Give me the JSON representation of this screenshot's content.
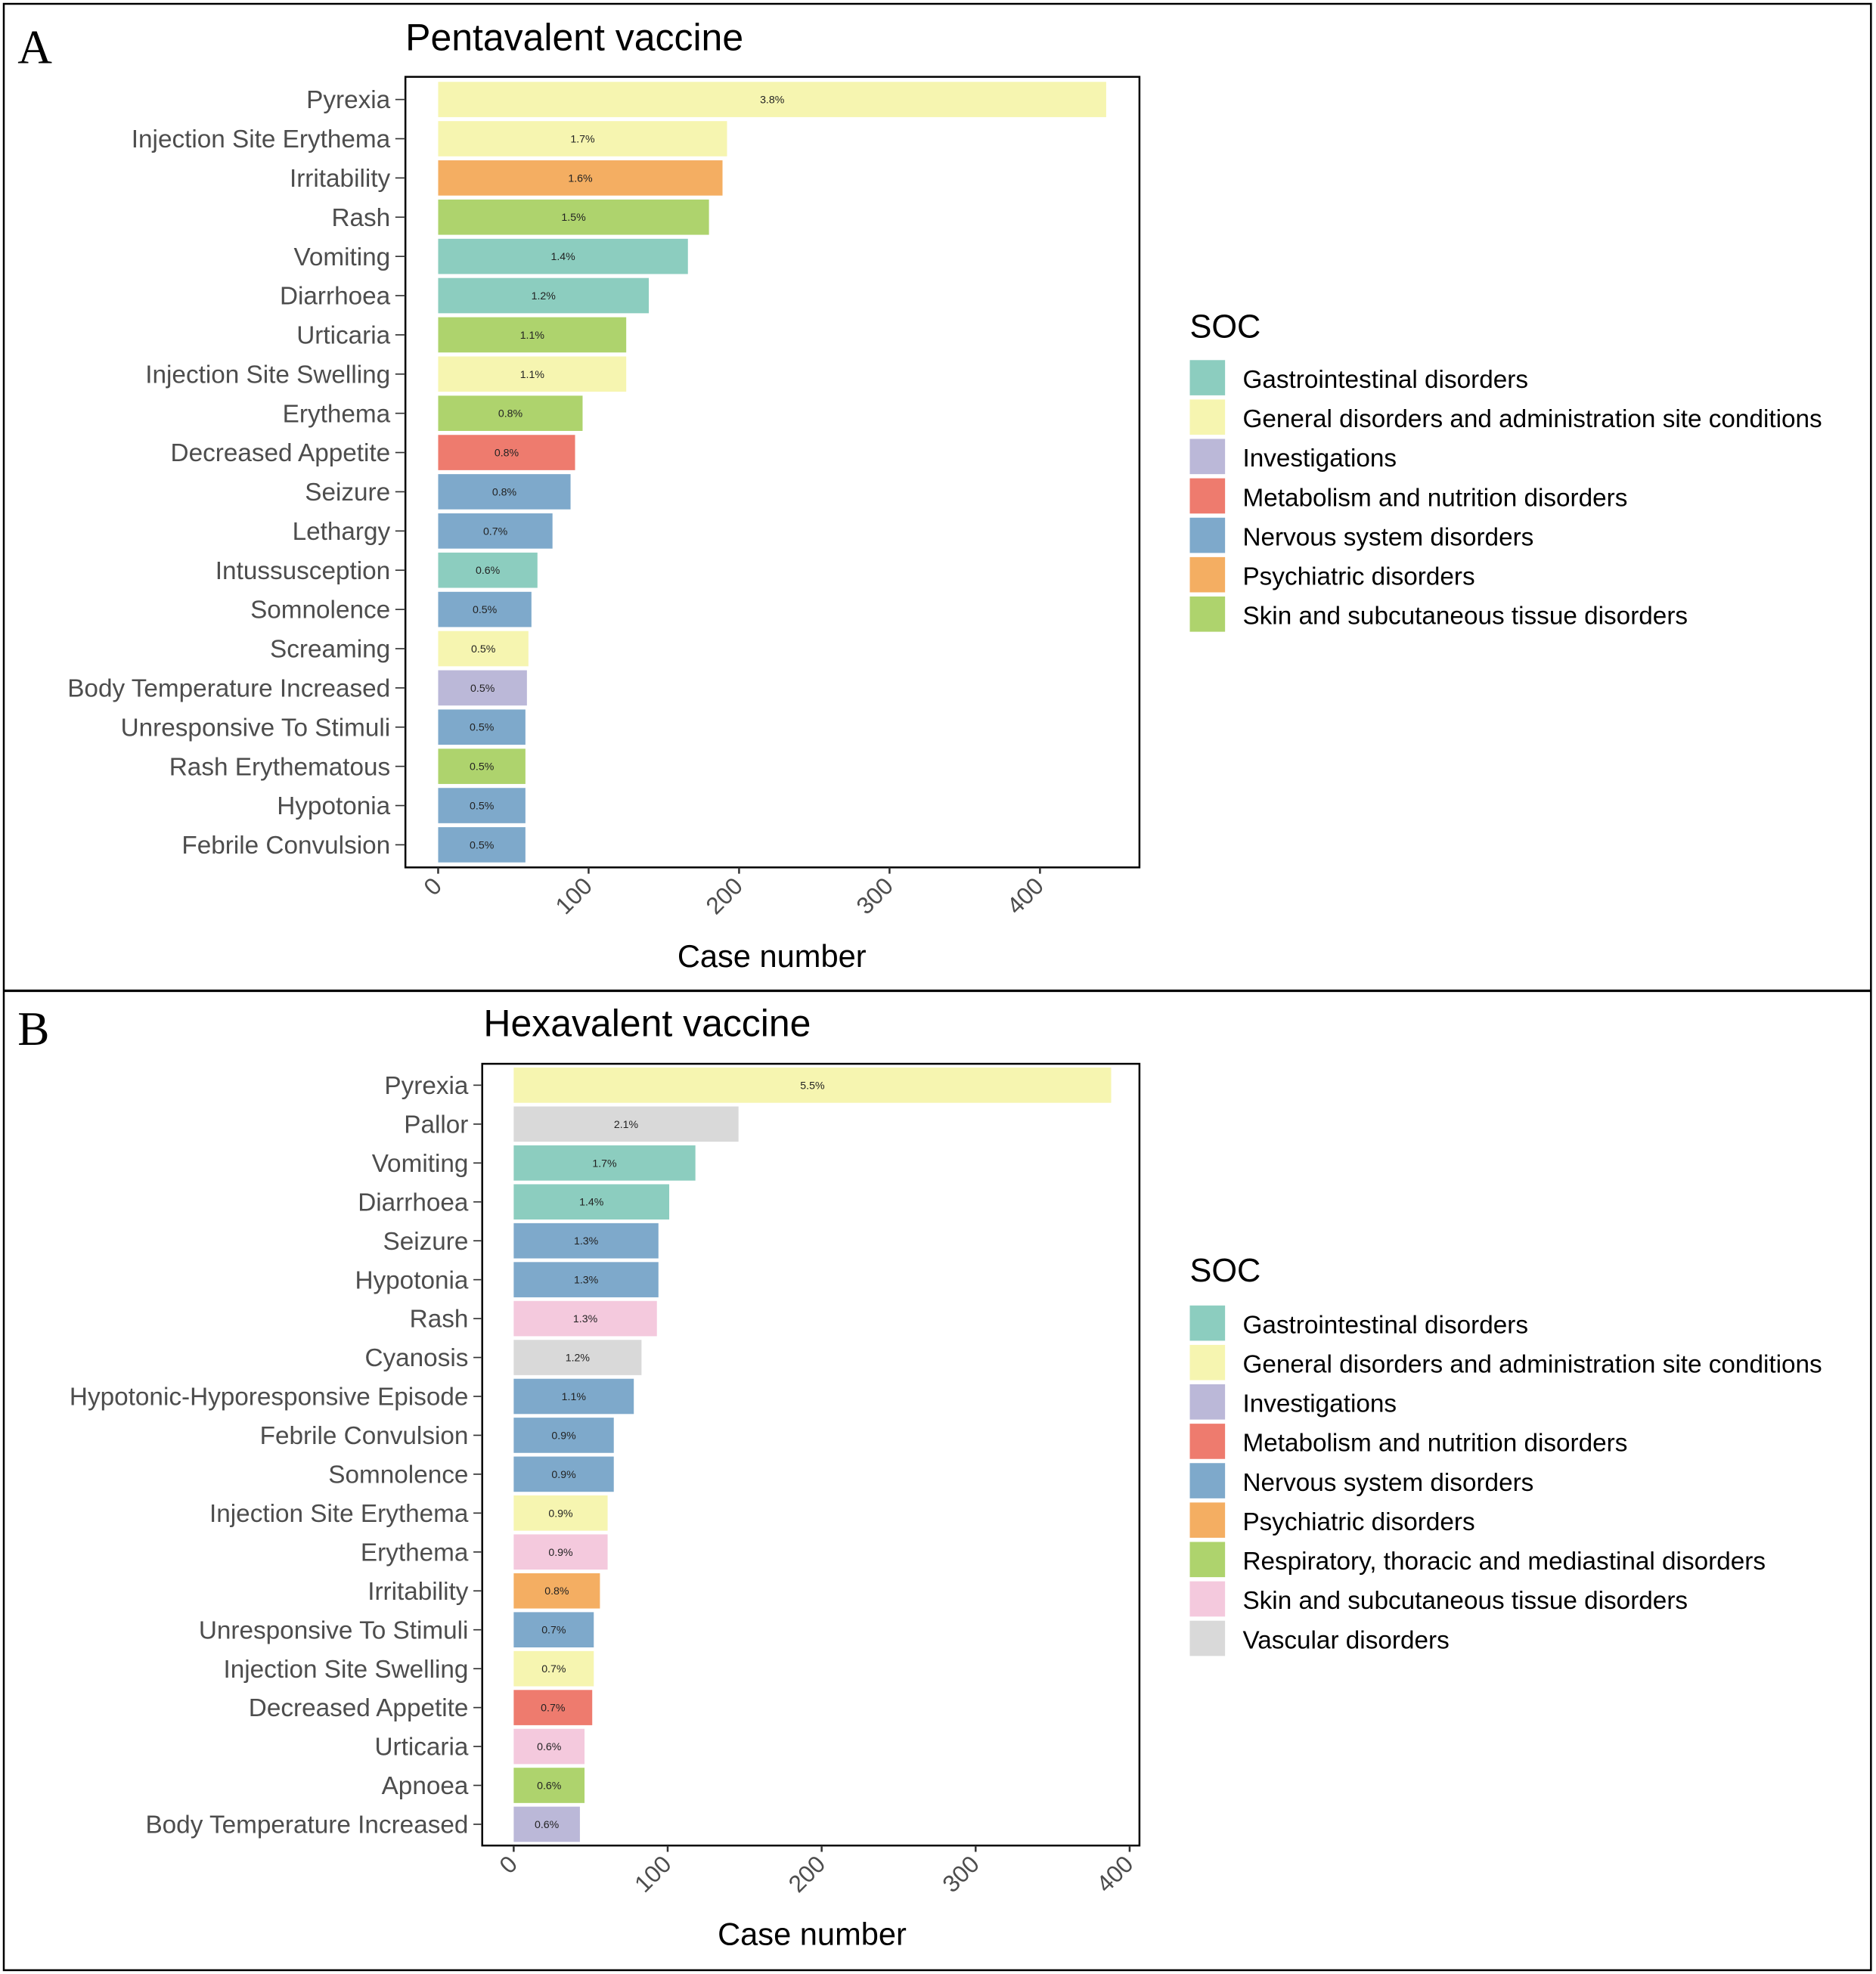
{
  "colors": {
    "Gastrointestinal disorders": "#8ccdbf",
    "General disorders and administration site conditions": "#f6f5b0",
    "Investigations": "#bbb8d8",
    "Metabolism and nutrition disorders": "#ee7b6e",
    "Nervous system disorders": "#7ea9cb",
    "Psychiatric disorders": "#f4ae62",
    "Skin and subcutaneous tissue disorders": "#aed36d",
    "Respiratory, thoracic and mediastinal disorders": "#aed36d",
    "Skin and subcutaneous tissue disorders B": "#f4c9dd",
    "Vascular disorders": "#d9d9d9"
  },
  "chart_data": [
    {
      "panel": "A",
      "type": "bar",
      "orientation": "horizontal",
      "title": "Pentavalent vaccine",
      "xlabel": "Case number",
      "xlim": [
        0,
        465
      ],
      "xticks": [
        0,
        100,
        200,
        300,
        400
      ],
      "legend_title": "SOC",
      "legend_position": "right",
      "legend": [
        {
          "label": "Gastrointestinal disorders",
          "color": "#8ccdbf"
        },
        {
          "label": "General disorders and administration site conditions",
          "color": "#f6f5b0"
        },
        {
          "label": "Investigations",
          "color": "#bbb8d8"
        },
        {
          "label": "Metabolism and nutrition disorders",
          "color": "#ee7b6e"
        },
        {
          "label": "Nervous system disorders",
          "color": "#7ea9cb"
        },
        {
          "label": "Psychiatric disorders",
          "color": "#f4ae62"
        },
        {
          "label": "Skin and subcutaneous tissue disorders",
          "color": "#aed36d"
        }
      ],
      "bars": [
        {
          "category": "Pyrexia",
          "value": 444,
          "pct": "3.8%",
          "soc": 1
        },
        {
          "category": "Injection Site Erythema",
          "value": 192,
          "pct": "1.7%",
          "soc": 1
        },
        {
          "category": "Irritability",
          "value": 189,
          "pct": "1.6%",
          "soc": 5
        },
        {
          "category": "Rash",
          "value": 180,
          "pct": "1.5%",
          "soc": 6
        },
        {
          "category": "Vomiting",
          "value": 166,
          "pct": "1.4%",
          "soc": 0
        },
        {
          "category": "Diarrhoea",
          "value": 140,
          "pct": "1.2%",
          "soc": 0
        },
        {
          "category": "Urticaria",
          "value": 125,
          "pct": "1.1%",
          "soc": 6
        },
        {
          "category": "Injection Site Swelling",
          "value": 125,
          "pct": "1.1%",
          "soc": 1
        },
        {
          "category": "Erythema",
          "value": 96,
          "pct": "0.8%",
          "soc": 6
        },
        {
          "category": "Decreased Appetite",
          "value": 91,
          "pct": "0.8%",
          "soc": 3
        },
        {
          "category": "Seizure",
          "value": 88,
          "pct": "0.8%",
          "soc": 4
        },
        {
          "category": "Lethargy",
          "value": 76,
          "pct": "0.7%",
          "soc": 4
        },
        {
          "category": "Intussusception",
          "value": 66,
          "pct": "0.6%",
          "soc": 0
        },
        {
          "category": "Somnolence",
          "value": 62,
          "pct": "0.5%",
          "soc": 4
        },
        {
          "category": "Screaming",
          "value": 60,
          "pct": "0.5%",
          "soc": 1
        },
        {
          "category": "Body Temperature Increased",
          "value": 59,
          "pct": "0.5%",
          "soc": 2
        },
        {
          "category": "Unresponsive To Stimuli",
          "value": 58,
          "pct": "0.5%",
          "soc": 4
        },
        {
          "category": "Rash Erythematous",
          "value": 58,
          "pct": "0.5%",
          "soc": 6
        },
        {
          "category": "Hypotonia",
          "value": 58,
          "pct": "0.5%",
          "soc": 4
        },
        {
          "category": "Febrile Convulsion",
          "value": 58,
          "pct": "0.5%",
          "soc": 4
        }
      ]
    },
    {
      "panel": "B",
      "type": "bar",
      "orientation": "horizontal",
      "title": "Hexavalent vaccine",
      "xlabel": "Case number",
      "xlim": [
        0,
        407
      ],
      "xticks": [
        0,
        100,
        200,
        300,
        400
      ],
      "legend_title": "SOC",
      "legend_position": "right",
      "legend": [
        {
          "label": "Gastrointestinal disorders",
          "color": "#8ccdbf"
        },
        {
          "label": "General disorders and administration site conditions",
          "color": "#f6f5b0"
        },
        {
          "label": "Investigations",
          "color": "#bbb8d8"
        },
        {
          "label": "Metabolism and nutrition disorders",
          "color": "#ee7b6e"
        },
        {
          "label": "Nervous system disorders",
          "color": "#7ea9cb"
        },
        {
          "label": "Psychiatric disorders",
          "color": "#f4ae62"
        },
        {
          "label": "Respiratory, thoracic and mediastinal disorders",
          "color": "#aed36d"
        },
        {
          "label": "Skin and subcutaneous tissue disorders",
          "color": "#f4c9dd"
        },
        {
          "label": "Vascular disorders",
          "color": "#d9d9d9"
        }
      ],
      "bars": [
        {
          "category": "Pyrexia",
          "value": 388,
          "pct": "5.5%",
          "soc": 1
        },
        {
          "category": "Pallor",
          "value": 146,
          "pct": "2.1%",
          "soc": 8
        },
        {
          "category": "Vomiting",
          "value": 118,
          "pct": "1.7%",
          "soc": 0
        },
        {
          "category": "Diarrhoea",
          "value": 101,
          "pct": "1.4%",
          "soc": 0
        },
        {
          "category": "Seizure",
          "value": 94,
          "pct": "1.3%",
          "soc": 4
        },
        {
          "category": "Hypotonia",
          "value": 94,
          "pct": "1.3%",
          "soc": 4
        },
        {
          "category": "Rash",
          "value": 93,
          "pct": "1.3%",
          "soc": 7
        },
        {
          "category": "Cyanosis",
          "value": 83,
          "pct": "1.2%",
          "soc": 8
        },
        {
          "category": "Hypotonic-Hyporesponsive Episode",
          "value": 78,
          "pct": "1.1%",
          "soc": 4
        },
        {
          "category": "Febrile Convulsion",
          "value": 65,
          "pct": "0.9%",
          "soc": 4
        },
        {
          "category": "Somnolence",
          "value": 65,
          "pct": "0.9%",
          "soc": 4
        },
        {
          "category": "Injection Site Erythema",
          "value": 61,
          "pct": "0.9%",
          "soc": 1
        },
        {
          "category": "Erythema",
          "value": 61,
          "pct": "0.9%",
          "soc": 7
        },
        {
          "category": "Irritability",
          "value": 56,
          "pct": "0.8%",
          "soc": 5
        },
        {
          "category": "Unresponsive To Stimuli",
          "value": 52,
          "pct": "0.7%",
          "soc": 4
        },
        {
          "category": "Injection Site Swelling",
          "value": 52,
          "pct": "0.7%",
          "soc": 1
        },
        {
          "category": "Decreased Appetite",
          "value": 51,
          "pct": "0.7%",
          "soc": 3
        },
        {
          "category": "Urticaria",
          "value": 46,
          "pct": "0.6%",
          "soc": 7
        },
        {
          "category": "Apnoea",
          "value": 46,
          "pct": "0.6%",
          "soc": 6
        },
        {
          "category": "Body Temperature Increased",
          "value": 43,
          "pct": "0.6%",
          "soc": 2
        }
      ]
    }
  ]
}
